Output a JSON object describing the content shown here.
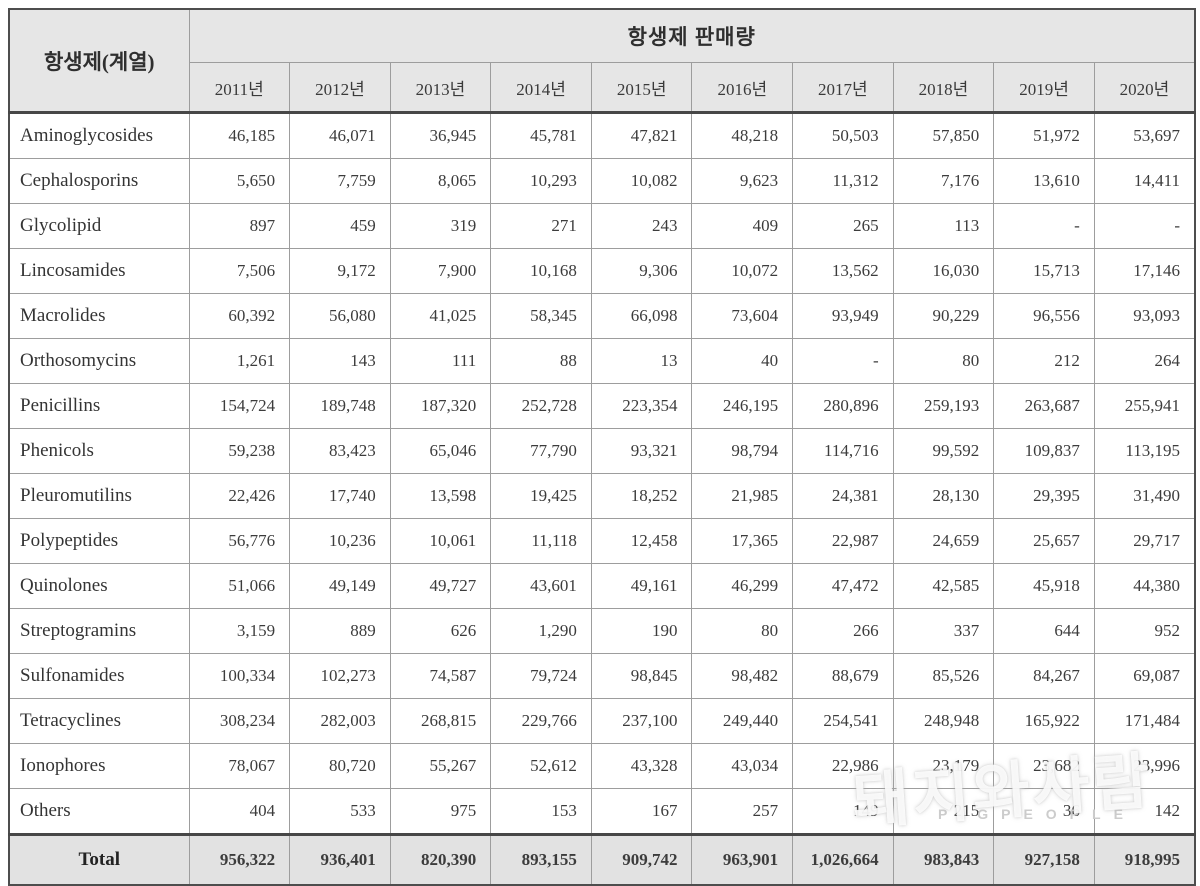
{
  "table": {
    "corner_header": "항생제(계열)",
    "group_header": "항생제 판매량",
    "year_headers": [
      "2011년",
      "2012년",
      "2013년",
      "2014년",
      "2015년",
      "2016년",
      "2017년",
      "2018년",
      "2019년",
      "2020년"
    ],
    "rows": [
      {
        "label": "Aminoglycosides",
        "values": [
          "46,185",
          "46,071",
          "36,945",
          "45,781",
          "47,821",
          "48,218",
          "50,503",
          "57,850",
          "51,972",
          "53,697"
        ]
      },
      {
        "label": "Cephalosporins",
        "values": [
          "5,650",
          "7,759",
          "8,065",
          "10,293",
          "10,082",
          "9,623",
          "11,312",
          "7,176",
          "13,610",
          "14,411"
        ]
      },
      {
        "label": "Glycolipid",
        "values": [
          "897",
          "459",
          "319",
          "271",
          "243",
          "409",
          "265",
          "113",
          "-",
          "-"
        ]
      },
      {
        "label": "Lincosamides",
        "values": [
          "7,506",
          "9,172",
          "7,900",
          "10,168",
          "9,306",
          "10,072",
          "13,562",
          "16,030",
          "15,713",
          "17,146"
        ]
      },
      {
        "label": "Macrolides",
        "values": [
          "60,392",
          "56,080",
          "41,025",
          "58,345",
          "66,098",
          "73,604",
          "93,949",
          "90,229",
          "96,556",
          "93,093"
        ]
      },
      {
        "label": "Orthosomycins",
        "values": [
          "1,261",
          "143",
          "111",
          "88",
          "13",
          "40",
          "-",
          "80",
          "212",
          "264"
        ]
      },
      {
        "label": "Penicillins",
        "values": [
          "154,724",
          "189,748",
          "187,320",
          "252,728",
          "223,354",
          "246,195",
          "280,896",
          "259,193",
          "263,687",
          "255,941"
        ]
      },
      {
        "label": "Phenicols",
        "values": [
          "59,238",
          "83,423",
          "65,046",
          "77,790",
          "93,321",
          "98,794",
          "114,716",
          "99,592",
          "109,837",
          "113,195"
        ]
      },
      {
        "label": "Pleuromutilins",
        "values": [
          "22,426",
          "17,740",
          "13,598",
          "19,425",
          "18,252",
          "21,985",
          "24,381",
          "28,130",
          "29,395",
          "31,490"
        ]
      },
      {
        "label": "Polypeptides",
        "values": [
          "56,776",
          "10,236",
          "10,061",
          "11,118",
          "12,458",
          "17,365",
          "22,987",
          "24,659",
          "25,657",
          "29,717"
        ]
      },
      {
        "label": "Quinolones",
        "values": [
          "51,066",
          "49,149",
          "49,727",
          "43,601",
          "49,161",
          "46,299",
          "47,472",
          "42,585",
          "45,918",
          "44,380"
        ]
      },
      {
        "label": "Streptogramins",
        "values": [
          "3,159",
          "889",
          "626",
          "1,290",
          "190",
          "80",
          "266",
          "337",
          "644",
          "952"
        ]
      },
      {
        "label": "Sulfonamides",
        "values": [
          "100,334",
          "102,273",
          "74,587",
          "79,724",
          "98,845",
          "98,482",
          "88,679",
          "85,526",
          "84,267",
          "69,087"
        ]
      },
      {
        "label": "Tetracyclines",
        "values": [
          "308,234",
          "282,003",
          "268,815",
          "229,766",
          "237,100",
          "249,440",
          "254,541",
          "248,948",
          "165,922",
          "171,484"
        ]
      },
      {
        "label": "Ionophores",
        "values": [
          "78,067",
          "80,720",
          "55,267",
          "52,612",
          "43,328",
          "43,034",
          "22,986",
          "23,179",
          "23,682",
          "23,996"
        ]
      },
      {
        "label": "Others",
        "values": [
          "404",
          "533",
          "975",
          "153",
          "167",
          "257",
          "149",
          "215",
          "36",
          "142"
        ]
      }
    ],
    "total": {
      "label": "Total",
      "values": [
        "956,322",
        "936,401",
        "820,390",
        "893,155",
        "909,742",
        "963,901",
        "1,026,664",
        "983,843",
        "927,158",
        "918,995"
      ]
    }
  },
  "watermark": {
    "text": "돼지와사람",
    "subtext": "PIGPEOPLE"
  },
  "colors": {
    "header_bg": "#e6e6e6",
    "total_bg": "#e2e2e2",
    "outer_border": "#4d4d4d",
    "grid_line": "#9d9d9d"
  },
  "chart_data": {
    "type": "table",
    "title": "항생제 판매량",
    "row_header": "항생제(계열)",
    "columns": [
      "2011년",
      "2012년",
      "2013년",
      "2014년",
      "2015년",
      "2016년",
      "2017년",
      "2018년",
      "2019년",
      "2020년"
    ],
    "series": [
      {
        "name": "Aminoglycosides",
        "values": [
          46185,
          46071,
          36945,
          45781,
          47821,
          48218,
          50503,
          57850,
          51972,
          53697
        ]
      },
      {
        "name": "Cephalosporins",
        "values": [
          5650,
          7759,
          8065,
          10293,
          10082,
          9623,
          11312,
          7176,
          13610,
          14411
        ]
      },
      {
        "name": "Glycolipid",
        "values": [
          897,
          459,
          319,
          271,
          243,
          409,
          265,
          113,
          null,
          null
        ]
      },
      {
        "name": "Lincosamides",
        "values": [
          7506,
          9172,
          7900,
          10168,
          9306,
          10072,
          13562,
          16030,
          15713,
          17146
        ]
      },
      {
        "name": "Macrolides",
        "values": [
          60392,
          56080,
          41025,
          58345,
          66098,
          73604,
          93949,
          90229,
          96556,
          93093
        ]
      },
      {
        "name": "Orthosomycins",
        "values": [
          1261,
          143,
          111,
          88,
          13,
          40,
          null,
          80,
          212,
          264
        ]
      },
      {
        "name": "Penicillins",
        "values": [
          154724,
          189748,
          187320,
          252728,
          223354,
          246195,
          280896,
          259193,
          263687,
          255941
        ]
      },
      {
        "name": "Phenicols",
        "values": [
          59238,
          83423,
          65046,
          77790,
          93321,
          98794,
          114716,
          99592,
          109837,
          113195
        ]
      },
      {
        "name": "Pleuromutilins",
        "values": [
          22426,
          17740,
          13598,
          19425,
          18252,
          21985,
          24381,
          28130,
          29395,
          31490
        ]
      },
      {
        "name": "Polypeptides",
        "values": [
          56776,
          10236,
          10061,
          11118,
          12458,
          17365,
          22987,
          24659,
          25657,
          29717
        ]
      },
      {
        "name": "Quinolones",
        "values": [
          51066,
          49149,
          49727,
          43601,
          49161,
          46299,
          47472,
          42585,
          45918,
          44380
        ]
      },
      {
        "name": "Streptogramins",
        "values": [
          3159,
          889,
          626,
          1290,
          190,
          80,
          266,
          337,
          644,
          952
        ]
      },
      {
        "name": "Sulfonamides",
        "values": [
          100334,
          102273,
          74587,
          79724,
          98845,
          98482,
          88679,
          85526,
          84267,
          69087
        ]
      },
      {
        "name": "Tetracyclines",
        "values": [
          308234,
          282003,
          268815,
          229766,
          237100,
          249440,
          254541,
          248948,
          165922,
          171484
        ]
      },
      {
        "name": "Ionophores",
        "values": [
          78067,
          80720,
          55267,
          52612,
          43328,
          43034,
          22986,
          23179,
          23682,
          23996
        ]
      },
      {
        "name": "Others",
        "values": [
          404,
          533,
          975,
          153,
          167,
          257,
          149,
          215,
          36,
          142
        ]
      },
      {
        "name": "Total",
        "values": [
          956322,
          936401,
          820390,
          893155,
          909742,
          963901,
          1026664,
          983843,
          927158,
          918995
        ]
      }
    ]
  }
}
